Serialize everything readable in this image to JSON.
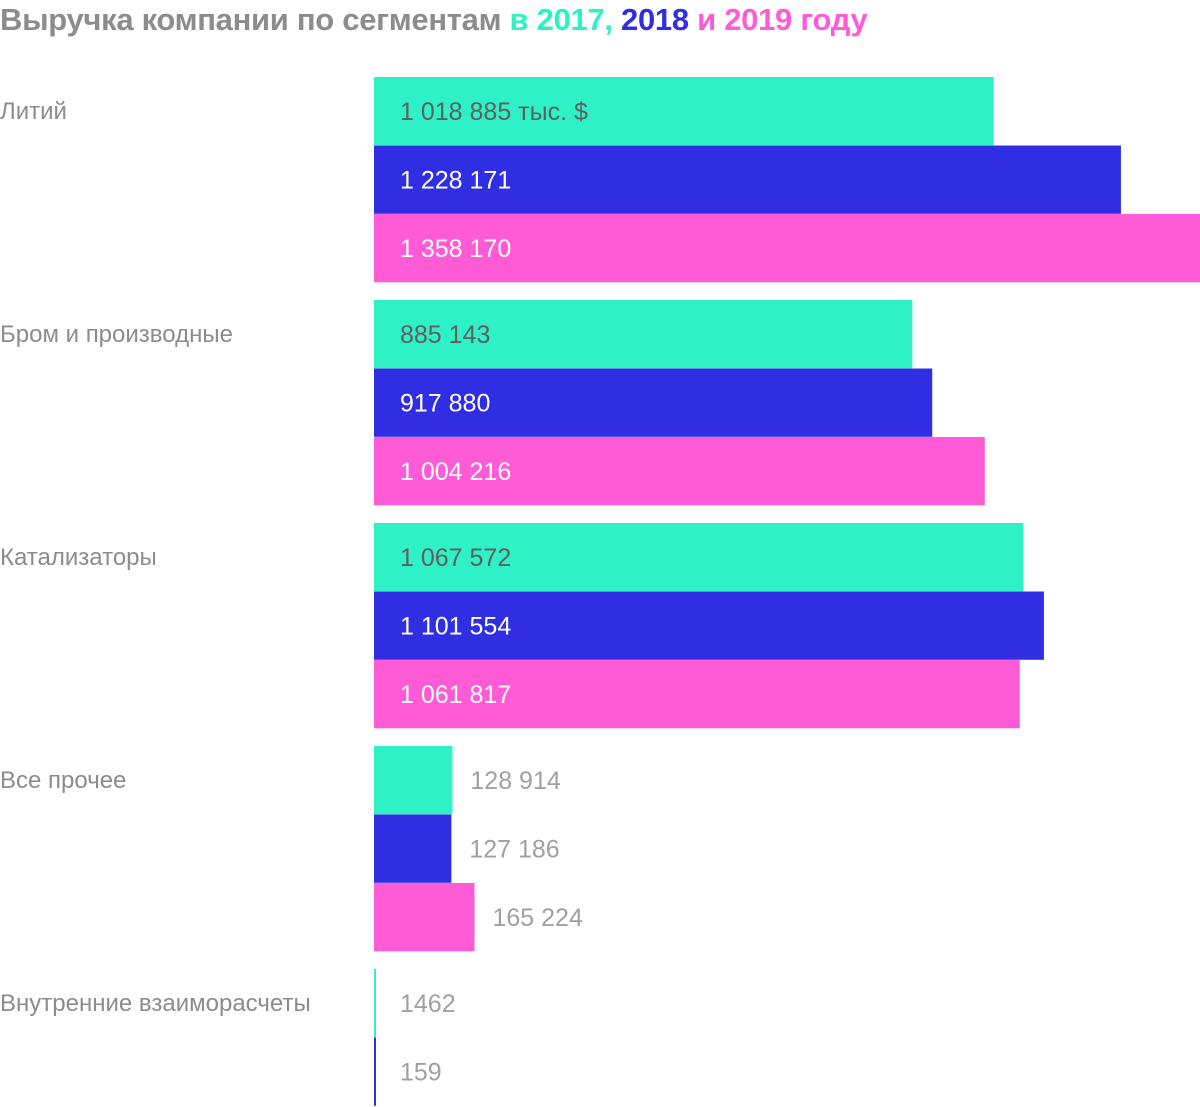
{
  "title": {
    "prefix": "Выручка компании по сегментам",
    "in": "в",
    "year1": "2017,",
    "year2": "2018",
    "and": "и",
    "year3": "2019",
    "suffix": "году"
  },
  "colors": {
    "title_gray": "#8c8c8c",
    "series_2017": "#2ef2c6",
    "series_2018": "#2f2ee3",
    "series_2019": "#ff5bd6",
    "label_dark": "#5f5f5f",
    "label_light": "#ffffff",
    "label_outside": "#a0a0a0",
    "category_label": "#8c8c8c"
  },
  "chart_data": {
    "type": "bar",
    "orientation": "horizontal",
    "unit": "тыс. $",
    "categories": [
      "Литий",
      "Бром и производные",
      "Катализаторы",
      "Все прочее",
      "Внутренние взаиморасчеты"
    ],
    "series": [
      {
        "name": "2017",
        "values": [
          1018885,
          885143,
          1067572,
          128914,
          1462
        ]
      },
      {
        "name": "2018",
        "values": [
          1228171,
          917880,
          1101554,
          127186,
          159
        ]
      },
      {
        "name": "2019",
        "values": [
          1358170,
          1004216,
          1061817,
          165224,
          null
        ]
      }
    ],
    "value_labels": [
      [
        "1 018 885 тыс. $",
        "1 228 171",
        "1 358 170"
      ],
      [
        "885 143",
        "917 880",
        "1 004 216"
      ],
      [
        "1 067 572",
        "1 101 554",
        "1 061 817"
      ],
      [
        "128 914",
        "127 186",
        "165 224"
      ],
      [
        "1462",
        "159",
        ""
      ]
    ],
    "xlim": [
      0,
      1358170
    ],
    "grid": false,
    "legend": "title"
  }
}
